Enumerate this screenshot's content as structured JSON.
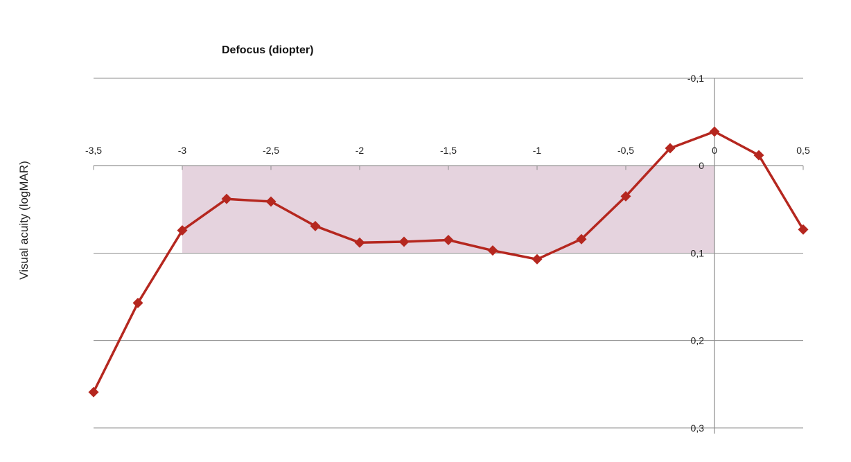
{
  "chart_data": {
    "type": "line",
    "title": "",
    "xlabel": "Defocus (diopter)",
    "ylabel": "Visual acuity (logMAR)",
    "x_axis_position": "top",
    "y_axis_inverted": true,
    "xlim": [
      -3.5,
      0.5
    ],
    "ylim": [
      -0.1,
      0.35
    ],
    "x_ticks": [
      -3.5,
      -3,
      -2.5,
      -2,
      -1.5,
      -1,
      -0.5,
      0,
      0.5
    ],
    "x_tick_labels": [
      "-3,5",
      "-3",
      "-2,5",
      "-2",
      "-1,5",
      "-1",
      "-0,5",
      "0",
      "0,5"
    ],
    "y_ticks": [
      -0.1,
      0,
      0.1,
      0.2,
      0.3
    ],
    "y_tick_labels": [
      "-0,1",
      "0",
      "0,1",
      "0,2",
      "0,3"
    ],
    "grid": "horizontal",
    "shaded_region": {
      "x": [
        -3,
        0
      ],
      "y": [
        0,
        0.1
      ],
      "color": "#e5d3de"
    },
    "series": [
      {
        "color": "#b5271f",
        "marker": "diamond",
        "x": [
          -3.5,
          -3.25,
          -3,
          -2.75,
          -2.5,
          -2.25,
          -2,
          -1.75,
          -1.5,
          -1.25,
          -1,
          -0.75,
          -0.5,
          -0.25,
          0,
          0.25,
          0.5
        ],
        "y": [
          0.259,
          0.157,
          0.074,
          0.038,
          0.041,
          0.069,
          0.088,
          0.087,
          0.085,
          0.097,
          0.107,
          0.084,
          0.035,
          -0.02,
          -0.039,
          -0.012,
          0.073
        ]
      }
    ]
  }
}
